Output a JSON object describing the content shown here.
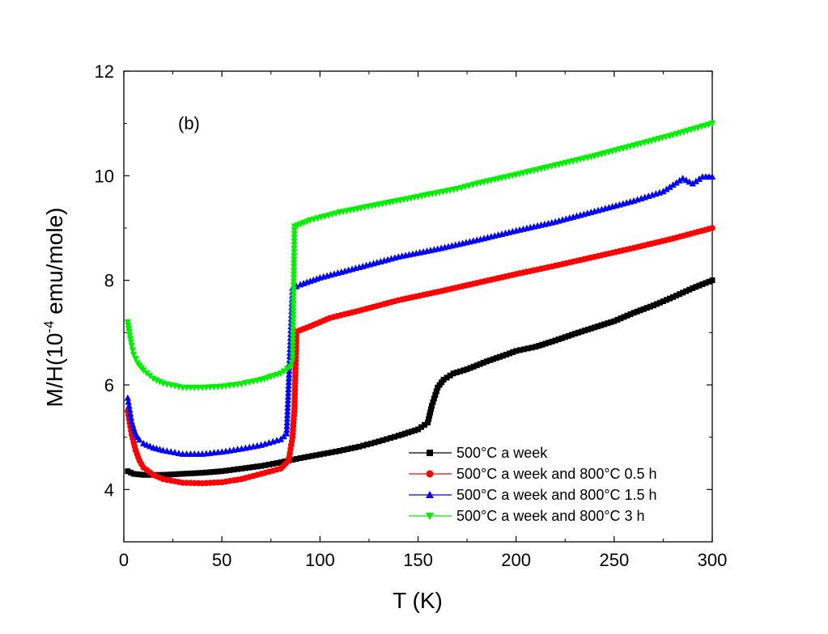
{
  "chart_data": {
    "type": "scatter",
    "title": "",
    "panel_label": "(b)",
    "xlabel": "T (K)",
    "ylabel_prefix": "M/H(10",
    "ylabel_exp": "-4",
    "ylabel_suffix": " emu/mole)",
    "xlim": [
      0,
      300
    ],
    "ylim": [
      3,
      12
    ],
    "xticks": [
      0,
      50,
      100,
      150,
      200,
      250,
      300
    ],
    "yticks": [
      4,
      6,
      8,
      10,
      12
    ],
    "legend_position": "lower-right",
    "series": [
      {
        "name": "500°C a week",
        "color": "#000000",
        "marker": "square",
        "points": [
          [
            2,
            4.35
          ],
          [
            5,
            4.3
          ],
          [
            10,
            4.28
          ],
          [
            20,
            4.28
          ],
          [
            30,
            4.3
          ],
          [
            40,
            4.32
          ],
          [
            50,
            4.35
          ],
          [
            60,
            4.4
          ],
          [
            70,
            4.45
          ],
          [
            80,
            4.52
          ],
          [
            90,
            4.6
          ],
          [
            100,
            4.67
          ],
          [
            110,
            4.74
          ],
          [
            120,
            4.82
          ],
          [
            130,
            4.92
          ],
          [
            140,
            5.03
          ],
          [
            150,
            5.15
          ],
          [
            155,
            5.28
          ],
          [
            157,
            5.6
          ],
          [
            160,
            5.95
          ],
          [
            163,
            6.1
          ],
          [
            168,
            6.22
          ],
          [
            175,
            6.3
          ],
          [
            185,
            6.45
          ],
          [
            195,
            6.58
          ],
          [
            200,
            6.65
          ],
          [
            210,
            6.73
          ],
          [
            220,
            6.85
          ],
          [
            230,
            6.98
          ],
          [
            240,
            7.1
          ],
          [
            250,
            7.22
          ],
          [
            260,
            7.38
          ],
          [
            270,
            7.52
          ],
          [
            280,
            7.68
          ],
          [
            290,
            7.85
          ],
          [
            300,
            8.0
          ]
        ]
      },
      {
        "name": "500°C a week and 800°C 0.5 h",
        "color": "#ff0000",
        "marker": "circle",
        "points": [
          [
            2,
            5.5
          ],
          [
            4,
            5.05
          ],
          [
            6,
            4.75
          ],
          [
            8,
            4.55
          ],
          [
            10,
            4.42
          ],
          [
            15,
            4.28
          ],
          [
            20,
            4.2
          ],
          [
            30,
            4.13
          ],
          [
            40,
            4.12
          ],
          [
            50,
            4.14
          ],
          [
            60,
            4.2
          ],
          [
            70,
            4.3
          ],
          [
            80,
            4.4
          ],
          [
            84,
            4.55
          ],
          [
            86,
            5.0
          ],
          [
            87,
            5.55
          ],
          [
            88,
            7.02
          ],
          [
            95,
            7.12
          ],
          [
            105,
            7.28
          ],
          [
            120,
            7.42
          ],
          [
            140,
            7.62
          ],
          [
            160,
            7.78
          ],
          [
            180,
            7.95
          ],
          [
            200,
            8.12
          ],
          [
            220,
            8.28
          ],
          [
            240,
            8.45
          ],
          [
            260,
            8.62
          ],
          [
            280,
            8.8
          ],
          [
            300,
            9.0
          ]
        ]
      },
      {
        "name": "500°C a week and 800°C 1.5 h",
        "color": "#0000ff",
        "marker": "triangle-up",
        "points": [
          [
            2,
            5.75
          ],
          [
            4,
            5.3
          ],
          [
            6,
            5.05
          ],
          [
            8,
            4.95
          ],
          [
            10,
            4.88
          ],
          [
            15,
            4.8
          ],
          [
            20,
            4.75
          ],
          [
            30,
            4.68
          ],
          [
            40,
            4.68
          ],
          [
            50,
            4.72
          ],
          [
            60,
            4.78
          ],
          [
            70,
            4.85
          ],
          [
            80,
            4.96
          ],
          [
            83,
            5.07
          ],
          [
            85,
            6.9
          ],
          [
            86,
            7.85
          ],
          [
            90,
            7.92
          ],
          [
            100,
            8.05
          ],
          [
            120,
            8.25
          ],
          [
            140,
            8.45
          ],
          [
            160,
            8.6
          ],
          [
            180,
            8.77
          ],
          [
            200,
            8.95
          ],
          [
            220,
            9.12
          ],
          [
            240,
            9.32
          ],
          [
            260,
            9.52
          ],
          [
            275,
            9.7
          ],
          [
            285,
            9.95
          ],
          [
            290,
            9.85
          ],
          [
            295,
            9.98
          ],
          [
            300,
            9.98
          ]
        ]
      },
      {
        "name": "500°C a week and 800°C 3 h",
        "color": "#00ee00",
        "marker": "triangle-down",
        "points": [
          [
            2,
            7.2
          ],
          [
            3,
            6.95
          ],
          [
            4,
            6.75
          ],
          [
            5,
            6.58
          ],
          [
            7,
            6.42
          ],
          [
            10,
            6.28
          ],
          [
            15,
            6.12
          ],
          [
            20,
            6.03
          ],
          [
            30,
            5.95
          ],
          [
            40,
            5.95
          ],
          [
            50,
            5.97
          ],
          [
            60,
            6.02
          ],
          [
            70,
            6.1
          ],
          [
            80,
            6.22
          ],
          [
            85,
            6.35
          ],
          [
            86,
            6.5
          ],
          [
            87,
            9.03
          ],
          [
            95,
            9.15
          ],
          [
            110,
            9.3
          ],
          [
            130,
            9.45
          ],
          [
            150,
            9.6
          ],
          [
            170,
            9.75
          ],
          [
            180,
            9.85
          ],
          [
            200,
            10.02
          ],
          [
            220,
            10.2
          ],
          [
            240,
            10.38
          ],
          [
            260,
            10.58
          ],
          [
            280,
            10.78
          ],
          [
            300,
            11.0
          ]
        ]
      }
    ]
  }
}
